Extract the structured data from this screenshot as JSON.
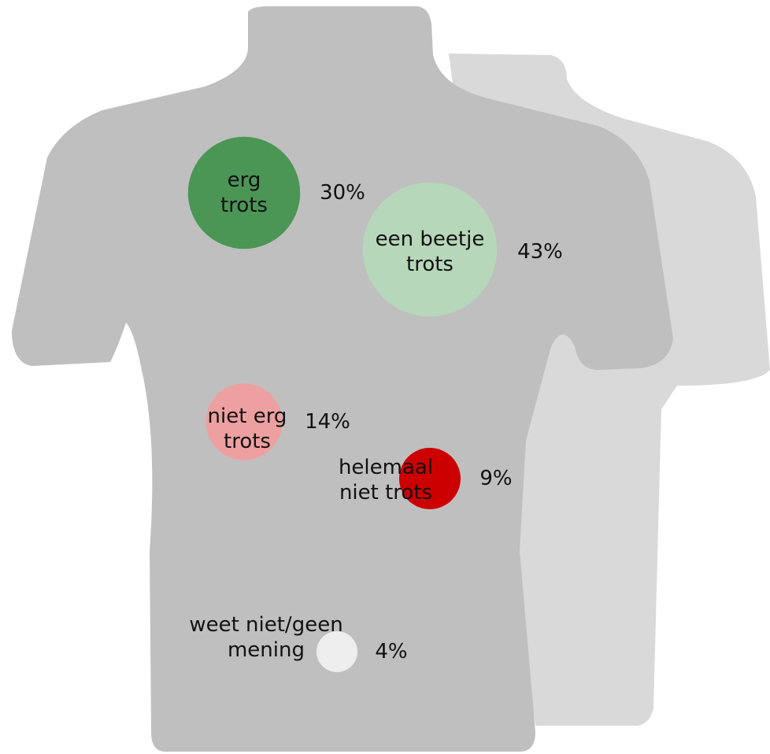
{
  "chart_data": {
    "type": "bubble",
    "categories": [
      "erg trots",
      "een beetje trots",
      "niet erg trots",
      "helemaal niet trots",
      "weet niet/geen mening"
    ],
    "values": [
      30,
      43,
      14,
      9,
      4
    ],
    "value_labels": [
      "30%",
      "43%",
      "14%",
      "9%",
      "4%"
    ],
    "colors": [
      "#4b9655",
      "#b6d7b9",
      "#eea0a0",
      "#cc0000",
      "#eeeeee"
    ]
  }
}
